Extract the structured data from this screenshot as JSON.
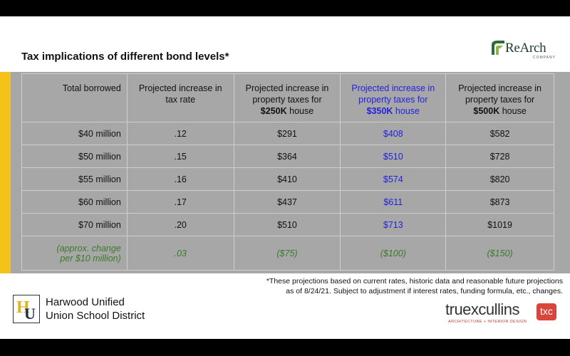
{
  "slide": {
    "title": "Tax implications of different bond levels*"
  },
  "rearch_logo": {
    "name": "ReArch",
    "sub": "COMPANY"
  },
  "table": {
    "headers": [
      {
        "line1": "Total borrowed",
        "line2": "",
        "bold": "",
        "after": ""
      },
      {
        "line1": "Projected increase in",
        "line2": "tax rate",
        "bold": "",
        "after": ""
      },
      {
        "line1": "Projected increase in",
        "line2": "property taxes for",
        "bold": "$250K",
        "after": " house"
      },
      {
        "line1": "Projected increase in",
        "line2": "property taxes for",
        "bold": "$350K",
        "after": " house"
      },
      {
        "line1": "Projected increase in",
        "line2": "property taxes for",
        "bold": "$500K",
        "after": " house"
      }
    ],
    "rows": [
      [
        "$40 million",
        ".12",
        "$291",
        "$408",
        "$582"
      ],
      [
        "$50 million",
        ".15",
        "$364",
        "$510",
        "$728"
      ],
      [
        "$55 million",
        ".16",
        "$410",
        "$574",
        "$820"
      ],
      [
        "$60 million",
        ".17",
        "$437",
        "$611",
        "$873"
      ],
      [
        "$70 million",
        ".20",
        "$510",
        "$713",
        "$1019"
      ]
    ],
    "footer": {
      "label_line1": "(approx. change",
      "label_line2": "per $10 million)",
      "values": [
        ".03",
        "($75)",
        "($100)",
        "($150)"
      ]
    }
  },
  "footnote": {
    "line1": "*These projections based on current rates, historic data and reasonable future projections",
    "line2": "as of 8/24/21. Subject to adjustment if interest rates, funding formula, etc., changes."
  },
  "district_logo": {
    "mark_h": "H",
    "mark_u": "U",
    "line1": "Harwood Unified",
    "line2": "Union School District"
  },
  "tx_logo": {
    "name": "truexcullins",
    "sub": "ARCHITECTURE + INTERIOR DESIGN",
    "badge": "txc"
  },
  "colors": {
    "accent_yellow": "#f5c21b",
    "band_gray": "#a7a7a7",
    "highlight_blue": "#2222dd",
    "footer_green": "#3c7a2a",
    "tx_red": "#d9453b"
  }
}
